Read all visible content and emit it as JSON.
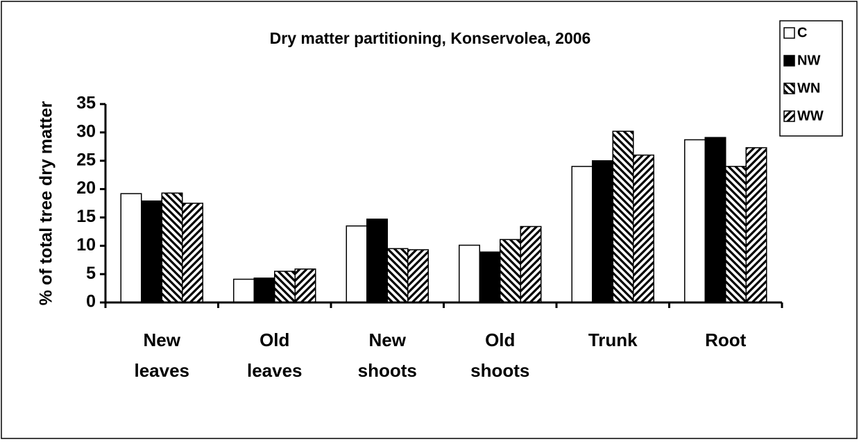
{
  "chart_data": {
    "type": "bar",
    "title": "Dry matter partitioning, Konservolea, 2006",
    "y_label": "% of total tree dry matter",
    "categories": [
      "New leaves",
      "Old leaves",
      "New shoots",
      "Old shoots",
      "Trunk",
      "Root"
    ],
    "series": [
      {
        "name": "C",
        "color": "#ffffff",
        "pattern": "solid",
        "values": [
          19.2,
          4.1,
          13.5,
          10.1,
          24.0,
          28.7
        ]
      },
      {
        "name": "NW",
        "color": "#000000",
        "pattern": "solid",
        "values": [
          17.9,
          4.3,
          14.7,
          8.9,
          25.0,
          29.1
        ]
      },
      {
        "name": "WN",
        "color": "#000000",
        "pattern": "back-diagonal",
        "values": [
          19.3,
          5.5,
          9.5,
          11.1,
          30.2,
          24.0
        ]
      },
      {
        "name": "WW",
        "color": "#000000",
        "pattern": "diagonal",
        "values": [
          17.5,
          5.9,
          9.3,
          13.4,
          26.0,
          27.3
        ]
      }
    ],
    "ylim": [
      0,
      35
    ],
    "yticks": [
      0,
      5,
      10,
      15,
      20,
      25,
      30,
      35
    ],
    "legend": "top-right",
    "grid": false
  }
}
